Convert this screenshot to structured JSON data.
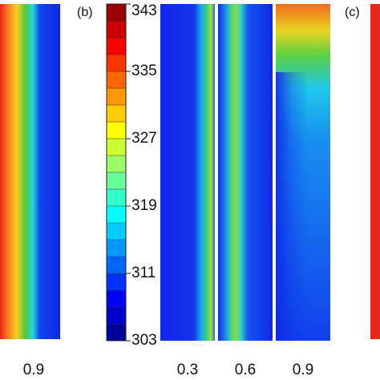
{
  "panel_labels": [
    "(b)",
    "(c)"
  ],
  "colorbar": {
    "min": 303,
    "max": 343,
    "ticks": [
      343,
      335,
      327,
      319,
      311,
      303
    ]
  },
  "column_labels": [
    "0.9",
    "0.3",
    "0.6",
    "0.9"
  ]
}
